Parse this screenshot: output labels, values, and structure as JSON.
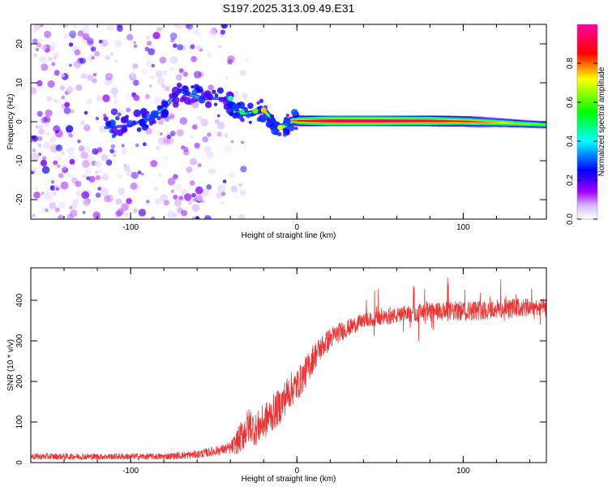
{
  "title": "S197.2025.313.09.49.E31",
  "chart_data": [
    {
      "type": "heatmap",
      "title": "S197.2025.313.09.49.E31",
      "xlabel": "Height of straight line (km)",
      "ylabel": "Frequency (Hz)",
      "xlim": [
        -160,
        150
      ],
      "ylim": [
        -25,
        25
      ],
      "xticks": [
        -100,
        0,
        100
      ],
      "yticks": [
        -20,
        -10,
        0,
        10,
        20
      ],
      "colorbar": {
        "label": "Normalized spectral amplitude",
        "range": [
          0,
          1
        ],
        "ticks": [
          "0.0",
          "0.2",
          "0.4",
          "0.6",
          "0.8"
        ],
        "tick_values": [
          0,
          0.2,
          0.4,
          0.6,
          0.8
        ],
        "colors": [
          "#ffffff",
          "#a000ff",
          "#0000ff",
          "#00ffff",
          "#00ff00",
          "#ffff00",
          "#ff0000",
          "#ff00a0"
        ]
      },
      "ridge": [
        {
          "x": -115,
          "f": -1.5,
          "a": 0.35
        },
        {
          "x": -100,
          "f": -1,
          "a": 0.3
        },
        {
          "x": -90,
          "f": 1,
          "a": 0.4
        },
        {
          "x": -85,
          "f": 2,
          "a": 0.45
        },
        {
          "x": -80,
          "f": 3.5,
          "a": 0.5
        },
        {
          "x": -75,
          "f": 6,
          "a": 0.45
        },
        {
          "x": -70,
          "f": 8,
          "a": 0.4
        },
        {
          "x": -65,
          "f": 7,
          "a": 0.4
        },
        {
          "x": -55,
          "f": 6,
          "a": 0.35
        },
        {
          "x": -45,
          "f": 6,
          "a": 0.35
        },
        {
          "x": -40,
          "f": 5,
          "a": 0.4
        },
        {
          "x": -38,
          "f": 2.5,
          "a": 0.5
        },
        {
          "x": -30,
          "f": 2,
          "a": 0.55
        },
        {
          "x": -25,
          "f": 2.5,
          "a": 0.6
        },
        {
          "x": -20,
          "f": 3,
          "a": 0.65
        },
        {
          "x": -15,
          "f": 0.5,
          "a": 0.6
        },
        {
          "x": -12,
          "f": -1.5,
          "a": 0.65
        },
        {
          "x": -8,
          "f": -1.2,
          "a": 0.7
        },
        {
          "x": -3,
          "f": 0.3,
          "a": 0.8
        },
        {
          "x": 5,
          "f": 0.2,
          "a": 0.9
        },
        {
          "x": 20,
          "f": 0.2,
          "a": 1.0
        },
        {
          "x": 50,
          "f": 0.2,
          "a": 1.0
        },
        {
          "x": 80,
          "f": 0.2,
          "a": 0.95
        },
        {
          "x": 100,
          "f": 0.1,
          "a": 0.85
        },
        {
          "x": 120,
          "f": -0.2,
          "a": 0.75
        },
        {
          "x": 135,
          "f": -0.5,
          "a": 0.65
        },
        {
          "x": 150,
          "f": -0.8,
          "a": 0.6
        }
      ]
    },
    {
      "type": "line",
      "xlabel": "Height of straight line (km)",
      "ylabel": "SNR (10 * v/v)",
      "xlim": [
        -160,
        150
      ],
      "ylim": [
        0,
        480
      ],
      "xticks": [
        -100,
        0,
        100
      ],
      "yticks": [
        0,
        100,
        200,
        300,
        400
      ],
      "color": "#ee3333",
      "series": [
        {
          "name": "SNR",
          "x": [
            -160,
            -140,
            -120,
            -100,
            -80,
            -60,
            -50,
            -45,
            -40,
            -35,
            -32,
            -28,
            -25,
            -20,
            -15,
            -10,
            -5,
            0,
            5,
            10,
            15,
            20,
            25,
            30,
            35,
            40,
            50,
            60,
            70,
            80,
            90,
            100,
            110,
            120,
            130,
            140,
            150
          ],
          "values": [
            15,
            15,
            15,
            15,
            15,
            20,
            28,
            32,
            35,
            55,
            75,
            95,
            80,
            100,
            120,
            140,
            175,
            190,
            220,
            260,
            285,
            305,
            320,
            330,
            340,
            350,
            355,
            362,
            368,
            370,
            372,
            374,
            376,
            378,
            380,
            382,
            385
          ],
          "spread": [
            8,
            8,
            8,
            8,
            8,
            10,
            12,
            12,
            15,
            35,
            45,
            45,
            40,
            45,
            45,
            45,
            45,
            40,
            40,
            35,
            30,
            28,
            25,
            22,
            20,
            18,
            18,
            20,
            22,
            25,
            25,
            25,
            25,
            25,
            25,
            22,
            20
          ]
        }
      ]
    }
  ]
}
